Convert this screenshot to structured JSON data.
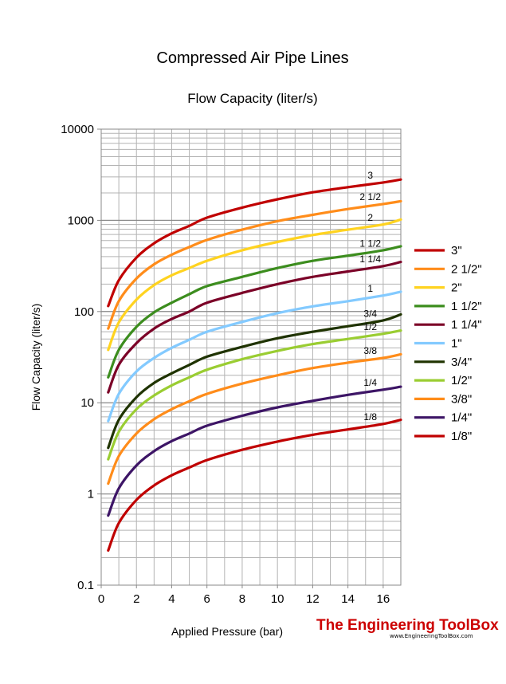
{
  "chart_data": {
    "type": "line",
    "title": "Compressed Air Pipe Lines",
    "subtitle": "Flow Capacity (liter/s)",
    "xlabel": "Applied Pressure (bar)",
    "ylabel": "Flow Capacity (liter/s)",
    "xlim": [
      0,
      17
    ],
    "ylim": [
      0.1,
      10000
    ],
    "yscale": "log",
    "grid": true,
    "legend_position": "right",
    "x_ticks": [
      "0",
      "2",
      "4",
      "6",
      "8",
      "10",
      "12",
      "14",
      "16"
    ],
    "y_ticks": [
      "0.1",
      "1",
      "10",
      "100",
      "1000",
      "10000"
    ],
    "x": [
      0.4,
      1,
      2,
      3,
      4,
      5,
      6,
      8,
      10,
      12,
      14,
      16,
      17
    ],
    "series": [
      {
        "name": "3\"",
        "curve_label": "3",
        "color": "#c00000",
        "values": [
          115,
          220,
          390,
          560,
          720,
          870,
          1070,
          1380,
          1700,
          2030,
          2310,
          2600,
          2800
        ]
      },
      {
        "name": "2 1/2\"",
        "curve_label": "2 1/2",
        "color": "#ff8c1a",
        "values": [
          65,
          130,
          230,
          330,
          420,
          510,
          610,
          790,
          980,
          1150,
          1330,
          1510,
          1620
        ]
      },
      {
        "name": "2\"",
        "curve_label": "2",
        "color": "#ffd320",
        "values": [
          38,
          76,
          135,
          195,
          250,
          300,
          360,
          470,
          580,
          690,
          790,
          900,
          1020
        ]
      },
      {
        "name": "1 1/2\"",
        "curve_label": "1 1/2",
        "color": "#3c8d1e",
        "values": [
          19,
          38,
          68,
          98,
          125,
          155,
          190,
          240,
          300,
          360,
          410,
          470,
          520
        ]
      },
      {
        "name": "1 1/4\"",
        "curve_label": "1 1/4",
        "color": "#7b0027",
        "values": [
          13,
          26,
          45,
          65,
          83,
          100,
          125,
          160,
          200,
          240,
          275,
          315,
          350
        ]
      },
      {
        "name": "1\"",
        "curve_label": "1",
        "color": "#83caff",
        "values": [
          6.3,
          12.5,
          22,
          31,
          40,
          49,
          60,
          77,
          96,
          114,
          130,
          150,
          165
        ]
      },
      {
        "name": "3/4\"",
        "curve_label": "3/4",
        "color": "#1f3300",
        "values": [
          3.2,
          6.5,
          11.5,
          16.5,
          21,
          26,
          32,
          41,
          51,
          60,
          69,
          80,
          93
        ]
      },
      {
        "name": "1/2\"",
        "curve_label": "1/2",
        "color": "#9acd32",
        "values": [
          2.4,
          4.8,
          8.5,
          12,
          15.5,
          19,
          23,
          30,
          37,
          44,
          50,
          57,
          62
        ]
      },
      {
        "name": "3/8\"",
        "curve_label": "3/8",
        "color": "#ff8c1a",
        "values": [
          1.3,
          2.6,
          4.6,
          6.6,
          8.5,
          10.4,
          12.5,
          16.2,
          20,
          24,
          27.5,
          31,
          34
        ]
      },
      {
        "name": "1/4\"",
        "curve_label": "1/4",
        "color": "#3d1566",
        "values": [
          0.58,
          1.15,
          2.05,
          2.95,
          3.8,
          4.6,
          5.6,
          7.2,
          8.9,
          10.5,
          12.2,
          13.9,
          15
        ]
      },
      {
        "name": "1/8\"",
        "curve_label": "1/8",
        "color": "#c00000",
        "values": [
          0.24,
          0.48,
          0.86,
          1.24,
          1.6,
          1.95,
          2.35,
          3.05,
          3.75,
          4.45,
          5.1,
          5.85,
          6.5
        ]
      }
    ]
  },
  "branding": {
    "name": "The Engineering ToolBox",
    "url": "www.EngineeringToolBox.com",
    "color": "#cc0000"
  }
}
